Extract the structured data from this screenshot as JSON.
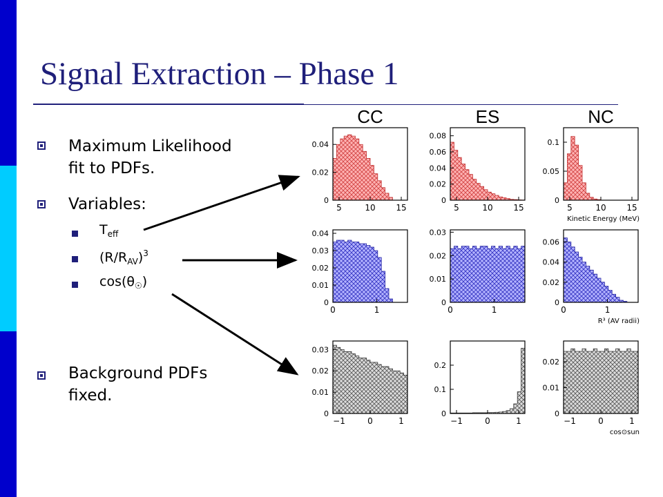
{
  "slide": {
    "title": "Signal Extraction – Phase 1",
    "bullets": [
      {
        "line1": "Maximum Likelihood",
        "line2": "fit to PDFs."
      },
      {
        "line1": "Variables:"
      },
      {
        "line1": "Background PDFs",
        "line2": "fixed."
      }
    ],
    "variables": {
      "teff_main": "T",
      "teff_sub": "eff",
      "r_main": "(R/R",
      "r_sub": "AV",
      "r_close": ")",
      "r_sup": "3",
      "cos_main": "cos(θ",
      "cos_sub": "☉",
      "cos_close": ")"
    },
    "colors": {
      "title": "#1f1f7a",
      "sidebar_dark": "#0000cc",
      "sidebar_light": "#00ccff",
      "red_hatch": "#ff8080",
      "blue_hatch": "#8080ff",
      "gray_hatch": "#b0b0b0"
    }
  },
  "chart_data": {
    "type": "histogram-grid",
    "column_titles": [
      "CC",
      "ES",
      "NC"
    ],
    "row_xlabels": [
      "Kinetic Energy (MeV)",
      "R³ (AV radii)",
      "cos⊙sun"
    ],
    "panels": [
      {
        "row": 0,
        "col": 0,
        "color": "red",
        "xlim": [
          4,
          16
        ],
        "ylim": [
          0,
          0.052
        ],
        "xticks": [
          "5",
          "10",
          "15"
        ],
        "xtick_values": [
          5,
          10,
          15
        ],
        "yticks": [
          "0.04",
          "0.02",
          "0"
        ],
        "ytick_values": [
          0.04,
          0.02,
          0
        ],
        "values": [
          0.03,
          0.04,
          0.044,
          0.046,
          0.047,
          0.046,
          0.044,
          0.04,
          0.035,
          0.03,
          0.025,
          0.019,
          0.014,
          0.009,
          0.005,
          0.002,
          0.0,
          0.0,
          0.0,
          0.0
        ]
      },
      {
        "row": 0,
        "col": 1,
        "color": "red",
        "xlim": [
          4,
          16
        ],
        "ylim": [
          0,
          0.09
        ],
        "xticks": [
          "5",
          "10",
          "15"
        ],
        "xtick_values": [
          5,
          10,
          15
        ],
        "yticks": [
          "0.08",
          "0.06",
          "0.04",
          "0.02",
          "0"
        ],
        "ytick_values": [
          0.08,
          0.06,
          0.04,
          0.02,
          0
        ],
        "values": [
          0.072,
          0.062,
          0.053,
          0.045,
          0.038,
          0.032,
          0.026,
          0.021,
          0.017,
          0.013,
          0.01,
          0.008,
          0.006,
          0.004,
          0.003,
          0.002,
          0.001,
          0.0007,
          0.0004,
          0.0002
        ]
      },
      {
        "row": 0,
        "col": 2,
        "color": "red",
        "xlim": [
          4,
          16
        ],
        "ylim": [
          0,
          0.125
        ],
        "xticks": [
          "5",
          "10",
          "15"
        ],
        "xtick_values": [
          5,
          10,
          15
        ],
        "yticks": [
          "0.1",
          "0.05",
          "0"
        ],
        "ytick_values": [
          0.1,
          0.05,
          0
        ],
        "values": [
          0.03,
          0.08,
          0.11,
          0.095,
          0.06,
          0.03,
          0.012,
          0.005,
          0.002,
          0.001,
          0.0,
          0.0,
          0.0,
          0.0,
          0.0,
          0.0,
          0.0,
          0.0,
          0.0,
          0.0
        ]
      },
      {
        "row": 1,
        "col": 0,
        "color": "blue",
        "xlim": [
          0,
          1.7
        ],
        "ylim": [
          0,
          0.042
        ],
        "xticks": [
          "0",
          "1"
        ],
        "xtick_values": [
          0,
          1
        ],
        "yticks": [
          "0.04",
          "0.03",
          "0.02",
          "0.01",
          "0"
        ],
        "ytick_values": [
          0.04,
          0.03,
          0.02,
          0.01,
          0
        ],
        "values": [
          0.035,
          0.036,
          0.036,
          0.035,
          0.036,
          0.035,
          0.035,
          0.034,
          0.034,
          0.033,
          0.032,
          0.03,
          0.026,
          0.018,
          0.008,
          0.002,
          0.0,
          0.0,
          0.0,
          0.0
        ]
      },
      {
        "row": 1,
        "col": 1,
        "color": "blue",
        "xlim": [
          0,
          1.7
        ],
        "ylim": [
          0,
          0.031
        ],
        "xticks": [
          "0",
          "1"
        ],
        "xtick_values": [
          0,
          1
        ],
        "yticks": [
          "0.03",
          "0.02",
          "0.01",
          "0"
        ],
        "ytick_values": [
          0.03,
          0.02,
          0.01,
          0
        ],
        "values": [
          0.023,
          0.024,
          0.023,
          0.024,
          0.024,
          0.023,
          0.024,
          0.023,
          0.024,
          0.024,
          0.023,
          0.024,
          0.023,
          0.024,
          0.023,
          0.024,
          0.023,
          0.024,
          0.023,
          0.024
        ]
      },
      {
        "row": 1,
        "col": 2,
        "color": "blue",
        "xlim": [
          0,
          1.7
        ],
        "ylim": [
          0,
          0.072
        ],
        "xticks": [
          "0",
          "1"
        ],
        "xtick_values": [
          0,
          1
        ],
        "yticks": [
          "0.06",
          "0.04",
          "0.02",
          "0"
        ],
        "ytick_values": [
          0.06,
          0.04,
          0.02,
          0
        ],
        "values": [
          0.064,
          0.06,
          0.055,
          0.05,
          0.045,
          0.04,
          0.036,
          0.032,
          0.028,
          0.024,
          0.02,
          0.016,
          0.012,
          0.008,
          0.005,
          0.002,
          0.001,
          0.0,
          0.0,
          0.0
        ]
      },
      {
        "row": 2,
        "col": 0,
        "color": "gray",
        "xlim": [
          -1.2,
          1.2
        ],
        "ylim": [
          0,
          0.034
        ],
        "xticks": [
          "-1",
          "0",
          "1"
        ],
        "xtick_values": [
          -1,
          0,
          1
        ],
        "yticks": [
          "0.03",
          "0.02",
          "0.01",
          "0"
        ],
        "ytick_values": [
          0.03,
          0.02,
          0.01,
          0
        ],
        "values": [
          0.032,
          0.031,
          0.03,
          0.029,
          0.029,
          0.028,
          0.027,
          0.026,
          0.026,
          0.025,
          0.024,
          0.024,
          0.023,
          0.022,
          0.022,
          0.021,
          0.02,
          0.02,
          0.019,
          0.018
        ]
      },
      {
        "row": 2,
        "col": 1,
        "color": "gray",
        "xlim": [
          -1.2,
          1.2
        ],
        "ylim": [
          0,
          0.3
        ],
        "xticks": [
          "-1",
          "0",
          "1"
        ],
        "xtick_values": [
          -1,
          0,
          1
        ],
        "yticks": [
          "0.2",
          "0.1",
          "0"
        ],
        "ytick_values": [
          0.2,
          0.1,
          0
        ],
        "values": [
          0.002,
          0.002,
          0.002,
          0.002,
          0.002,
          0.002,
          0.003,
          0.003,
          0.003,
          0.003,
          0.004,
          0.004,
          0.005,
          0.006,
          0.008,
          0.012,
          0.02,
          0.04,
          0.09,
          0.27
        ]
      },
      {
        "row": 2,
        "col": 2,
        "color": "gray",
        "xlim": [
          -1.2,
          1.2
        ],
        "ylim": [
          0,
          0.028
        ],
        "xticks": [
          "-1",
          "0",
          "1"
        ],
        "xtick_values": [
          -1,
          0,
          1
        ],
        "yticks": [
          "0.02",
          "0.01",
          "0"
        ],
        "ytick_values": [
          0.02,
          0.01,
          0
        ],
        "values": [
          0.024,
          0.024,
          0.025,
          0.024,
          0.024,
          0.025,
          0.024,
          0.024,
          0.025,
          0.024,
          0.024,
          0.025,
          0.024,
          0.024,
          0.025,
          0.024,
          0.024,
          0.025,
          0.024,
          0.024
        ]
      }
    ]
  }
}
